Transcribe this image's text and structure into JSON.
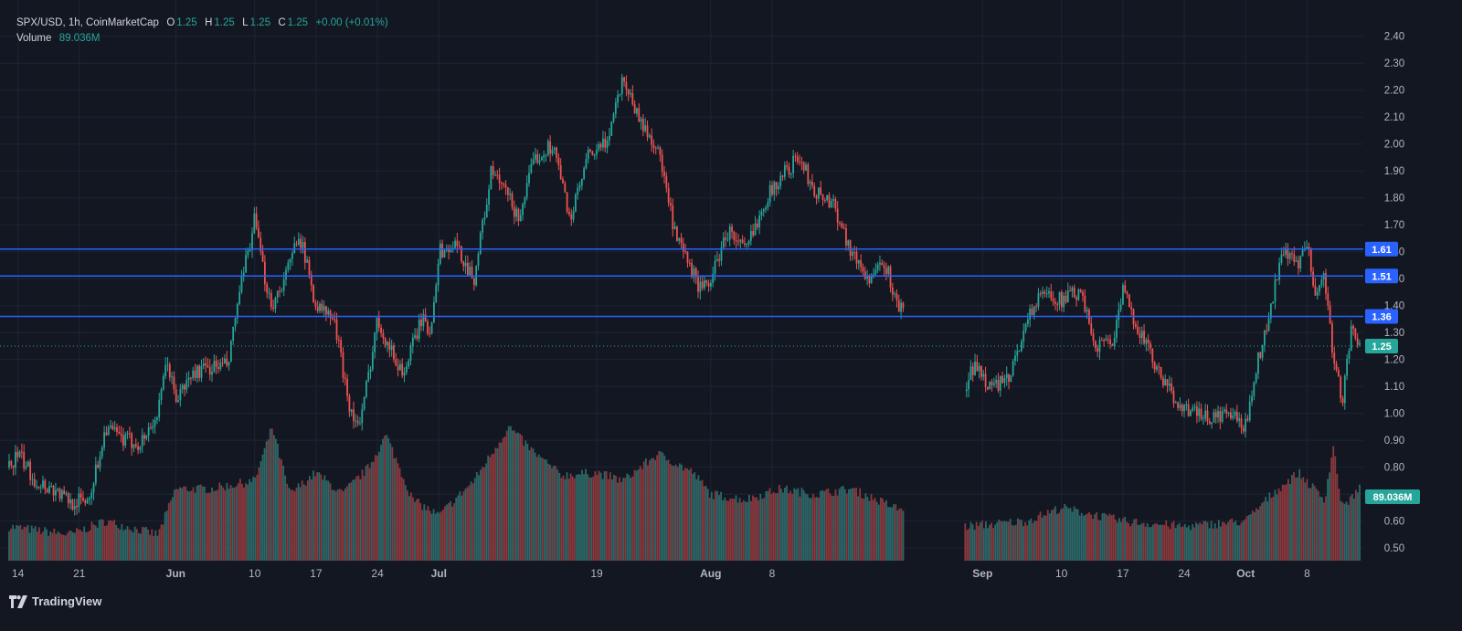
{
  "header": {
    "symbol": "SPX/USD, 1h, CoinMarketCap",
    "o_label": "O",
    "o": "1.25",
    "h_label": "H",
    "h": "1.25",
    "l_label": "L",
    "l": "1.25",
    "c_label": "C",
    "c": "1.25",
    "change": "+0.00 (+0.01%)",
    "volume_label": "Volume",
    "volume_value": "89.036M"
  },
  "brand": {
    "name": "TradingView",
    "icon": "tradingview-logo-icon"
  },
  "colors": {
    "background": "#131722",
    "grid": "#1f2433",
    "up": "#26a69a",
    "down": "#ef5350",
    "level_line": "#2962ff",
    "level_label": "#2962ff",
    "last_price": "#26a69a",
    "text": "#b2b5be"
  },
  "chart_data": {
    "type": "candlestick",
    "title": "SPX/USD, 1h, CoinMarketCap",
    "price_axis": {
      "ylim": [
        0.47,
        2.45
      ],
      "ticks": [
        0.5,
        0.6,
        0.7,
        0.8,
        0.9,
        1.0,
        1.1,
        1.2,
        1.3,
        1.4,
        1.5,
        1.6,
        1.7,
        1.8,
        1.9,
        2.0,
        2.1,
        2.2,
        2.3,
        2.4
      ]
    },
    "time_axis": {
      "ticks": [
        {
          "date": "2024-05-14",
          "label": "14"
        },
        {
          "date": "2024-05-21",
          "label": "21"
        },
        {
          "date": "2024-06-01",
          "label": "Jun"
        },
        {
          "date": "2024-06-10",
          "label": "10"
        },
        {
          "date": "2024-06-17",
          "label": "17"
        },
        {
          "date": "2024-06-24",
          "label": "24"
        },
        {
          "date": "2024-07-01",
          "label": "Jul"
        },
        {
          "date": "2024-07-19",
          "label": "19"
        },
        {
          "date": "2024-08-01",
          "label": "Aug"
        },
        {
          "date": "2024-08-08",
          "label": "8"
        },
        {
          "date": "2024-09-01",
          "label": "Sep"
        },
        {
          "date": "2024-09-10",
          "label": "10"
        },
        {
          "date": "2024-09-17",
          "label": "17"
        },
        {
          "date": "2024-09-24",
          "label": "24"
        },
        {
          "date": "2024-10-01",
          "label": "Oct"
        },
        {
          "date": "2024-10-08",
          "label": "8"
        }
      ]
    },
    "horizontal_levels": [
      {
        "value": 1.61,
        "label": "1.61"
      },
      {
        "value": 1.51,
        "label": "1.51"
      },
      {
        "value": 1.36,
        "label": "1.36"
      }
    ],
    "last_price": {
      "value": 1.25,
      "label": "1.25"
    },
    "volume_label": {
      "value": "89.036M"
    },
    "price_path": [
      [
        "2024-05-13",
        0.8
      ],
      [
        "2024-05-14",
        0.85
      ],
      [
        "2024-05-16",
        0.75
      ],
      [
        "2024-05-18",
        0.72
      ],
      [
        "2024-05-20",
        0.67
      ],
      [
        "2024-05-22",
        0.68
      ],
      [
        "2024-05-23",
        0.8
      ],
      [
        "2024-05-24",
        0.95
      ],
      [
        "2024-05-26",
        0.9
      ],
      [
        "2024-05-28",
        0.89
      ],
      [
        "2024-05-30",
        1.0
      ],
      [
        "2024-05-31",
        1.2
      ],
      [
        "2024-06-01",
        1.05
      ],
      [
        "2024-06-03",
        1.15
      ],
      [
        "2024-06-05",
        1.17
      ],
      [
        "2024-06-07",
        1.18
      ],
      [
        "2024-06-08",
        1.4
      ],
      [
        "2024-06-10",
        1.72
      ],
      [
        "2024-06-11",
        1.52
      ],
      [
        "2024-06-12",
        1.4
      ],
      [
        "2024-06-14",
        1.55
      ],
      [
        "2024-06-15",
        1.68
      ],
      [
        "2024-06-17",
        1.4
      ],
      [
        "2024-06-19",
        1.35
      ],
      [
        "2024-06-21",
        1.0
      ],
      [
        "2024-06-22",
        0.95
      ],
      [
        "2024-06-24",
        1.35
      ],
      [
        "2024-06-26",
        1.2
      ],
      [
        "2024-06-27",
        1.15
      ],
      [
        "2024-06-29",
        1.35
      ],
      [
        "2024-06-30",
        1.3
      ],
      [
        "2024-07-01",
        1.6
      ],
      [
        "2024-07-03",
        1.62
      ],
      [
        "2024-07-05",
        1.5
      ],
      [
        "2024-07-07",
        1.9
      ],
      [
        "2024-07-09",
        1.8
      ],
      [
        "2024-07-10",
        1.72
      ],
      [
        "2024-07-12",
        1.95
      ],
      [
        "2024-07-14",
        2.0
      ],
      [
        "2024-07-16",
        1.72
      ],
      [
        "2024-07-18",
        1.95
      ],
      [
        "2024-07-20",
        2.0
      ],
      [
        "2024-07-22",
        2.25
      ],
      [
        "2024-07-24",
        2.08
      ],
      [
        "2024-07-26",
        1.98
      ],
      [
        "2024-07-28",
        1.65
      ],
      [
        "2024-07-31",
        1.45
      ],
      [
        "2024-08-01",
        1.5
      ],
      [
        "2024-08-03",
        1.68
      ],
      [
        "2024-08-05",
        1.6
      ],
      [
        "2024-08-07",
        1.78
      ],
      [
        "2024-08-09",
        1.88
      ],
      [
        "2024-08-11",
        1.95
      ],
      [
        "2024-08-13",
        1.82
      ],
      [
        "2024-08-15",
        1.78
      ],
      [
        "2024-08-17",
        1.6
      ],
      [
        "2024-08-19",
        1.5
      ],
      [
        "2024-08-21",
        1.55
      ],
      [
        "2024-08-22",
        1.42
      ],
      [
        "2024-08-30",
        1.08
      ],
      [
        "2024-08-31",
        1.18
      ],
      [
        "2024-09-02",
        1.1
      ],
      [
        "2024-09-04",
        1.12
      ],
      [
        "2024-09-06",
        1.35
      ],
      [
        "2024-09-08",
        1.45
      ],
      [
        "2024-09-10",
        1.42
      ],
      [
        "2024-09-12",
        1.45
      ],
      [
        "2024-09-14",
        1.25
      ],
      [
        "2024-09-16",
        1.28
      ],
      [
        "2024-09-17",
        1.45
      ],
      [
        "2024-09-19",
        1.3
      ],
      [
        "2024-09-21",
        1.15
      ],
      [
        "2024-09-23",
        1.05
      ],
      [
        "2024-09-25",
        1.0
      ],
      [
        "2024-09-27",
        0.98
      ],
      [
        "2024-09-29",
        1.0
      ],
      [
        "2024-10-01",
        0.95
      ],
      [
        "2024-10-02",
        1.15
      ],
      [
        "2024-10-04",
        1.4
      ],
      [
        "2024-10-05",
        1.6
      ],
      [
        "2024-10-07",
        1.55
      ],
      [
        "2024-10-08",
        1.62
      ],
      [
        "2024-10-09",
        1.45
      ],
      [
        "2024-10-10",
        1.52
      ],
      [
        "2024-10-11",
        1.2
      ],
      [
        "2024-10-12",
        1.05
      ],
      [
        "2024-10-13",
        1.3
      ],
      [
        "2024-10-14",
        1.25
      ]
    ],
    "volume_path": [
      [
        "2024-05-13",
        0.58
      ],
      [
        "2024-05-20",
        0.55
      ],
      [
        "2024-05-24",
        0.6
      ],
      [
        "2024-05-30",
        0.55
      ],
      [
        "2024-06-01",
        0.72
      ],
      [
        "2024-06-05",
        0.72
      ],
      [
        "2024-06-10",
        0.75
      ],
      [
        "2024-06-12",
        0.95
      ],
      [
        "2024-06-14",
        0.7
      ],
      [
        "2024-06-17",
        0.78
      ],
      [
        "2024-06-20",
        0.7
      ],
      [
        "2024-06-23",
        0.8
      ],
      [
        "2024-06-25",
        0.92
      ],
      [
        "2024-06-28",
        0.68
      ],
      [
        "2024-07-01",
        0.62
      ],
      [
        "2024-07-05",
        0.75
      ],
      [
        "2024-07-09",
        0.95
      ],
      [
        "2024-07-12",
        0.85
      ],
      [
        "2024-07-15",
        0.77
      ],
      [
        "2024-07-19",
        0.78
      ],
      [
        "2024-07-22",
        0.75
      ],
      [
        "2024-07-26",
        0.85
      ],
      [
        "2024-07-30",
        0.78
      ],
      [
        "2024-08-01",
        0.7
      ],
      [
        "2024-08-05",
        0.68
      ],
      [
        "2024-08-09",
        0.72
      ],
      [
        "2024-08-13",
        0.7
      ],
      [
        "2024-08-17",
        0.72
      ],
      [
        "2024-08-22",
        0.65
      ],
      [
        "2024-08-30",
        0.58
      ],
      [
        "2024-09-06",
        0.6
      ],
      [
        "2024-09-10",
        0.65
      ],
      [
        "2024-09-17",
        0.6
      ],
      [
        "2024-09-24",
        0.58
      ],
      [
        "2024-10-01",
        0.6
      ],
      [
        "2024-10-04",
        0.7
      ],
      [
        "2024-10-07",
        0.78
      ],
      [
        "2024-10-10",
        0.68
      ],
      [
        "2024-10-11",
        0.88
      ],
      [
        "2024-10-12",
        0.65
      ],
      [
        "2024-10-14",
        0.72
      ]
    ]
  }
}
